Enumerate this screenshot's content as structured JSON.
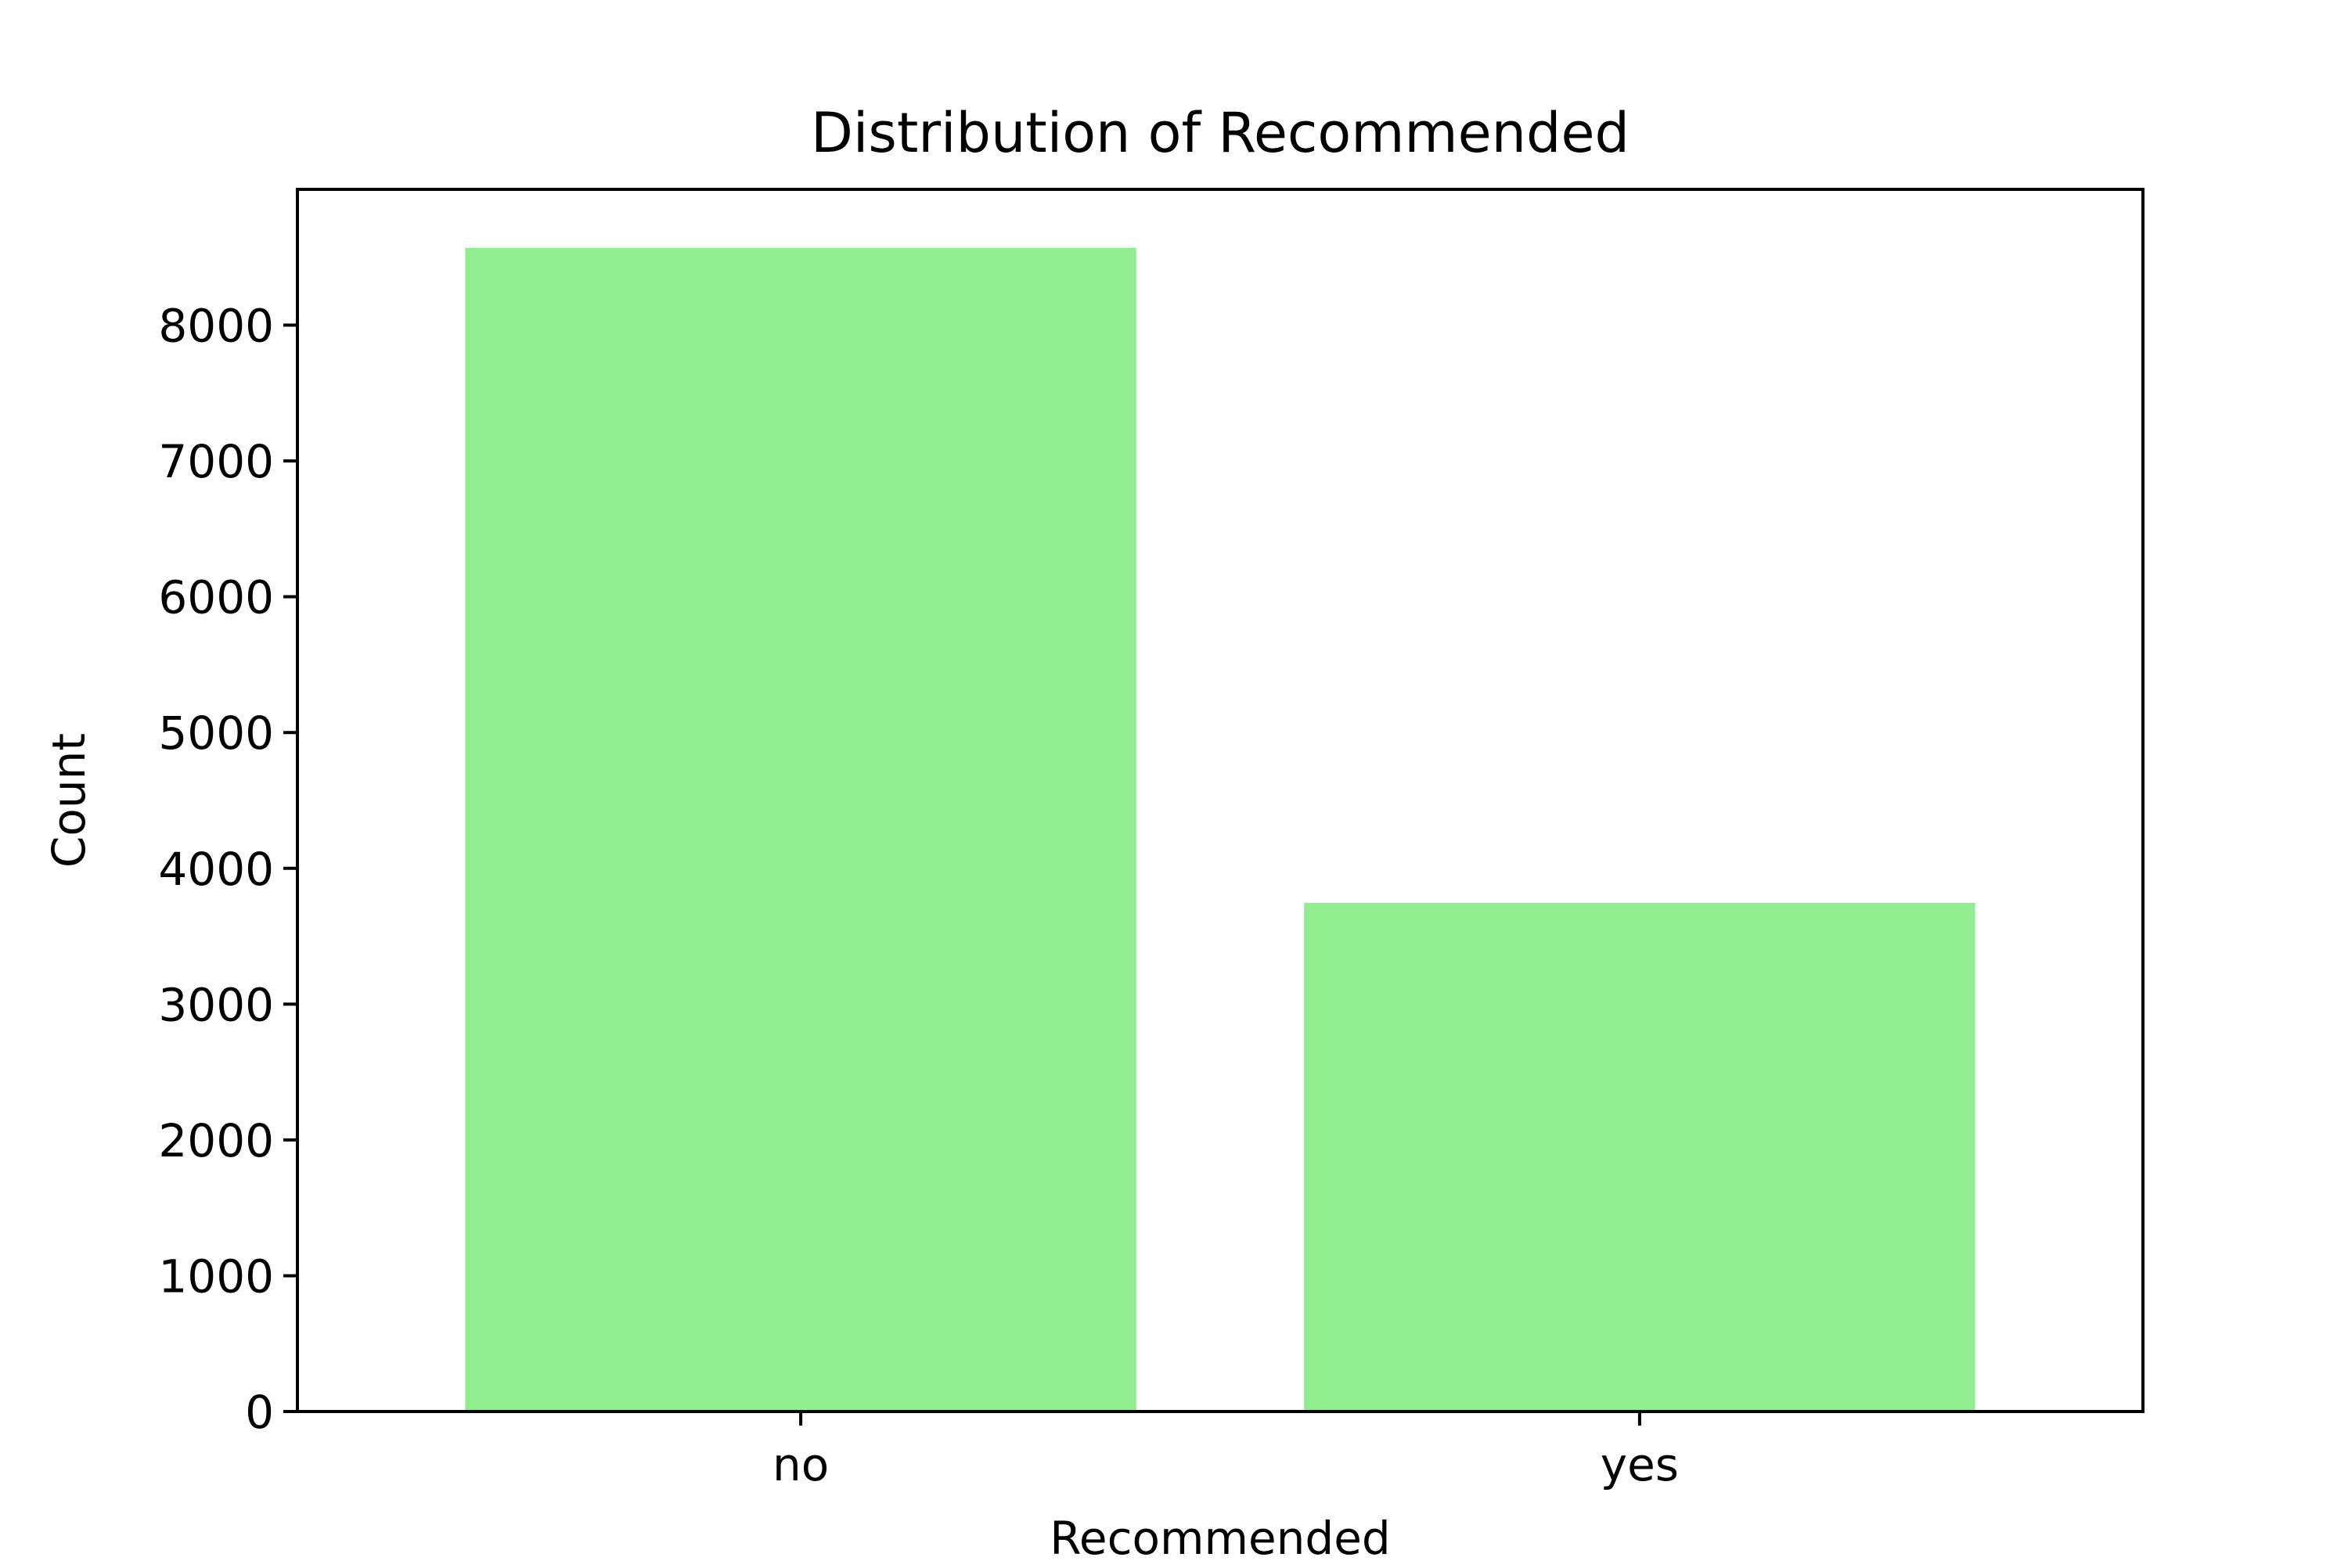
{
  "chart_data": {
    "type": "bar",
    "title": "Distribution of Recommended",
    "xlabel": "Recommended",
    "ylabel": "Count",
    "categories": [
      "no",
      "yes"
    ],
    "values": [
      8570,
      3745
    ],
    "ylim": [
      0,
      9000
    ],
    "yticks": [
      0,
      1000,
      2000,
      3000,
      4000,
      5000,
      6000,
      7000,
      8000
    ],
    "ytick_labels": [
      "0",
      "1000",
      "2000",
      "3000",
      "4000",
      "5000",
      "6000",
      "7000",
      "8000"
    ],
    "bar_color": "#90ee90",
    "grid": false,
    "legend": "none"
  }
}
